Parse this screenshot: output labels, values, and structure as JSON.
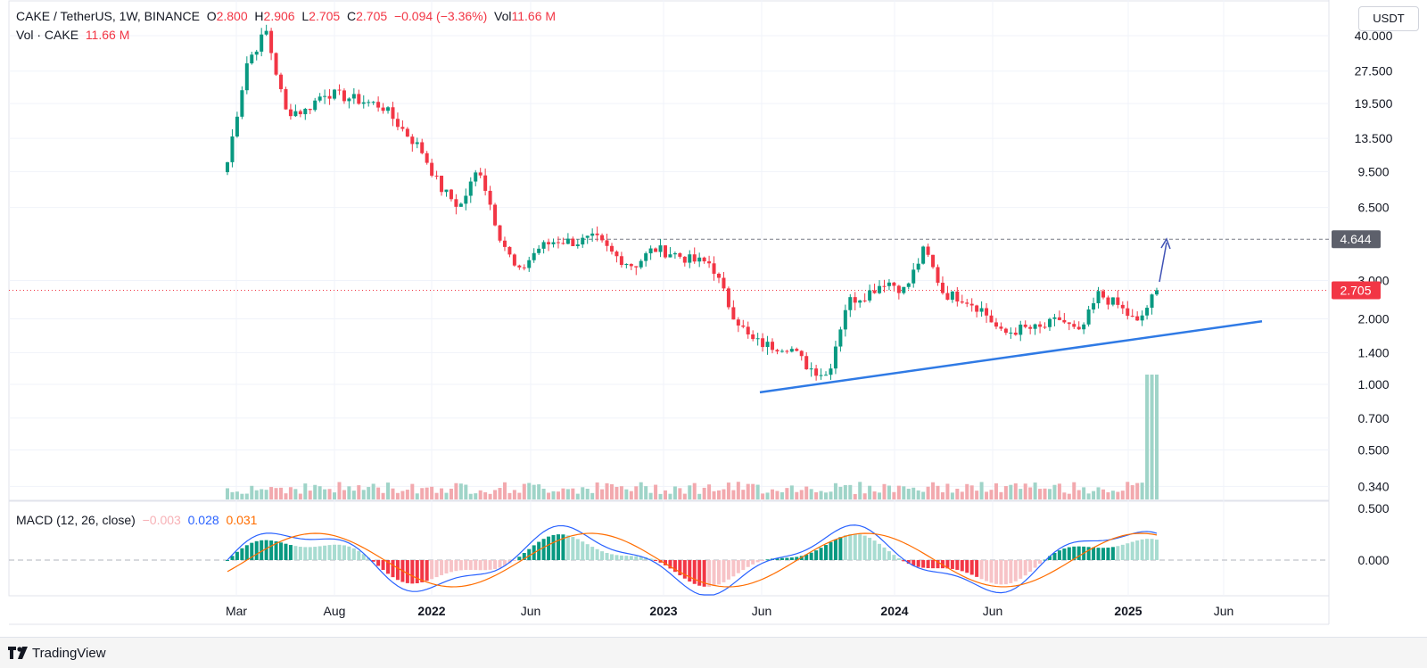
{
  "header": {
    "symbol": "CAKE / TetherUS, 1W, BINANCE",
    "open_label": "O",
    "open": "2.800",
    "high_label": "H",
    "high": "2.906",
    "low_label": "L",
    "low": "2.705",
    "close_label": "C",
    "close": "2.705",
    "change": "−0.094 (−3.36%)",
    "vol_label": "Vol",
    "vol": "11.66 M",
    "vol_series": "Vol · CAKE",
    "vol_value": "11.66 M"
  },
  "macd": {
    "label": "MACD (12, 26, close)",
    "hist": "−0.003",
    "macd": "0.028",
    "signal": "0.031"
  },
  "currency": "USDT",
  "branding": "TradingView",
  "colors": {
    "up": "#089981",
    "down": "#f23645",
    "vol_up": "#9fd4c8",
    "vol_down": "#f2a9ae",
    "trendline": "#2f7ae5",
    "macd_line": "#2962ff",
    "signal_line": "#ff6d00"
  },
  "chart_data": {
    "type": "candlestick",
    "y_scale": "log",
    "y_ticks": [
      "40.000",
      "27.500",
      "19.500",
      "13.500",
      "9.500",
      "6.500",
      "4.644",
      "3.000",
      "2.705",
      "2.000",
      "1.400",
      "1.000",
      "0.700",
      "0.500",
      "0.340"
    ],
    "macd_ticks": [
      "0.500",
      "0.000"
    ],
    "x_labels": [
      "Mar",
      "Aug",
      "2022",
      "Jun",
      "2023",
      "Jun",
      "2024",
      "Jun",
      "2025",
      "Jun"
    ],
    "resistance_level": 4.644,
    "last_price": 2.705,
    "series": [
      {
        "name": "price_envelope",
        "points": [
          [
            "Mar",
            10.5
          ],
          [
            "Apr",
            30
          ],
          [
            "May",
            42
          ],
          [
            "Jun",
            18
          ],
          [
            "Jul",
            18
          ],
          [
            "Aug",
            22
          ],
          [
            "Sep",
            21
          ],
          [
            "Oct",
            20
          ],
          [
            "Nov",
            19
          ],
          [
            "Dec",
            15
          ],
          [
            "2022",
            12
          ],
          [
            "Feb",
            8
          ],
          [
            "Mar",
            6.5
          ],
          [
            "Apr",
            10
          ],
          [
            "May",
            5
          ],
          [
            "Jun",
            3.2
          ],
          [
            "Jul",
            4.2
          ],
          [
            "Aug",
            4.6
          ],
          [
            "Sep",
            4.5
          ],
          [
            "Oct",
            4.7
          ],
          [
            "Nov",
            3.9
          ],
          [
            "Dec",
            3.5
          ],
          [
            "2023",
            4.2
          ],
          [
            "Feb",
            4.0
          ],
          [
            "Mar",
            3.7
          ],
          [
            "Apr",
            3.6
          ],
          [
            "May",
            2.2
          ],
          [
            "Jun",
            1.6
          ],
          [
            "Jul",
            1.5
          ],
          [
            "Aug",
            1.5
          ],
          [
            "Sep",
            1.2
          ],
          [
            "Oct",
            1.1
          ],
          [
            "Nov",
            2.4
          ],
          [
            "Dec",
            2.6
          ],
          [
            "2024",
            3.0
          ],
          [
            "Feb",
            2.7
          ],
          [
            "Mar",
            4.2
          ],
          [
            "Apr",
            2.6
          ],
          [
            "May",
            2.5
          ],
          [
            "Jun",
            2.2
          ],
          [
            "Jul",
            1.7
          ],
          [
            "Aug",
            1.8
          ],
          [
            "Sep",
            1.8
          ],
          [
            "Oct",
            2.0
          ],
          [
            "Nov",
            1.7
          ],
          [
            "Dec",
            2.6
          ],
          [
            "2025",
            2.3
          ],
          [
            "Feb",
            1.9
          ],
          [
            "Feb2",
            2.705
          ]
        ]
      }
    ],
    "trendline": [
      [
        "Jun 2023",
        0.92
      ],
      [
        "Jun 2025",
        1.95
      ]
    ]
  }
}
